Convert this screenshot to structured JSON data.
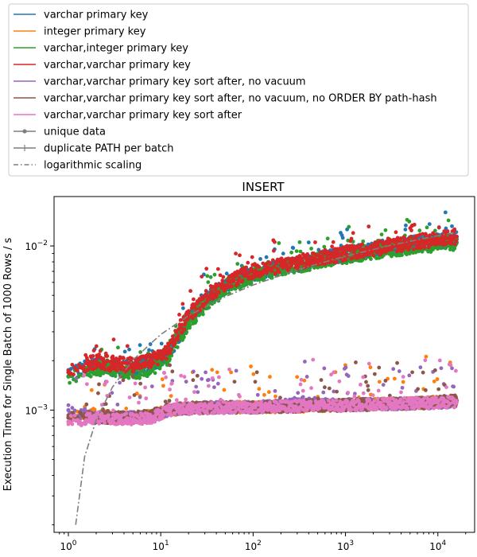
{
  "chart_data": {
    "type": "scatter",
    "title": "INSERT",
    "xlabel": "",
    "ylabel": "Execution Time for Single Batch of 1000 Rows / s",
    "xscale": "log",
    "yscale": "log",
    "xlim": [
      0.7,
      25000
    ],
    "ylim": [
      0.00018,
      0.02
    ],
    "grid": false,
    "legend_position": "above the plot",
    "x_ticks": [
      {
        "base": "10",
        "exp": "0",
        "value": 1
      },
      {
        "base": "10",
        "exp": "1",
        "value": 10
      },
      {
        "base": "10",
        "exp": "2",
        "value": 100
      },
      {
        "base": "10",
        "exp": "3",
        "value": 1000
      },
      {
        "base": "10",
        "exp": "4",
        "value": 10000
      }
    ],
    "y_ticks": [
      {
        "base": "10",
        "exp": "−3",
        "value": 0.001
      },
      {
        "base": "10",
        "exp": "−2",
        "value": 0.01
      }
    ],
    "legend": [
      {
        "label": "varchar primary key",
        "color": "#1f77b4",
        "style": "line"
      },
      {
        "label": "integer primary key",
        "color": "#ff7f0e",
        "style": "line"
      },
      {
        "label": "varchar,integer primary key",
        "color": "#2ca02c",
        "style": "line"
      },
      {
        "label": "varchar,varchar primary key",
        "color": "#d62728",
        "style": "line"
      },
      {
        "label": "varchar,varchar primary key sort after, no vacuum",
        "color": "#9467bd",
        "style": "line"
      },
      {
        "label": "varchar,varchar primary key sort after, no vacuum, no ORDER BY path-hash",
        "color": "#8c564b",
        "style": "line"
      },
      {
        "label": "varchar,varchar primary key sort after",
        "color": "#e377c2",
        "style": "line"
      },
      {
        "label": "unique data",
        "color": "#7f7f7f",
        "style": "dot-line"
      },
      {
        "label": "duplicate PATH per batch",
        "color": "#7f7f7f",
        "style": "plus-line"
      },
      {
        "label": "logarithmic scaling",
        "color": "#7f7f7f",
        "style": "dashdot"
      }
    ],
    "series": [
      {
        "name": "varchar primary key",
        "color": "#1f77b4",
        "group": "high",
        "x": [
          1,
          2,
          3,
          5,
          8,
          12,
          20,
          35,
          60,
          100,
          200,
          400,
          800,
          1500,
          3000,
          6000,
          10000,
          16000
        ],
        "y": [
          0.0017,
          0.0019,
          0.0018,
          0.0018,
          0.0019,
          0.0022,
          0.0036,
          0.005,
          0.006,
          0.0068,
          0.0074,
          0.008,
          0.0087,
          0.0093,
          0.0099,
          0.0104,
          0.0107,
          0.011
        ]
      },
      {
        "name": "integer primary key",
        "color": "#ff7f0e",
        "group": "low",
        "x": [
          1,
          2,
          3,
          5,
          8,
          12,
          20,
          35,
          60,
          100,
          200,
          400,
          800,
          1500,
          3000,
          6000,
          10000,
          16000
        ],
        "y": [
          0.0009,
          0.00095,
          0.0009,
          0.0009,
          0.00092,
          0.001,
          0.00103,
          0.00104,
          0.00104,
          0.00104,
          0.00105,
          0.00106,
          0.00107,
          0.00108,
          0.00109,
          0.0011,
          0.00112,
          0.00114
        ]
      },
      {
        "name": "varchar,integer primary key",
        "color": "#2ca02c",
        "group": "high",
        "x": [
          1,
          2,
          3,
          5,
          8,
          12,
          20,
          35,
          60,
          100,
          200,
          400,
          800,
          1500,
          3000,
          6000,
          10000,
          16000
        ],
        "y": [
          0.0016,
          0.0018,
          0.0018,
          0.0017,
          0.0018,
          0.0021,
          0.0034,
          0.0048,
          0.0058,
          0.0066,
          0.0073,
          0.0078,
          0.0085,
          0.009,
          0.0095,
          0.01,
          0.0103,
          0.0105
        ]
      },
      {
        "name": "varchar,varchar primary key",
        "color": "#d62728",
        "group": "high",
        "x": [
          1,
          2,
          3,
          5,
          8,
          12,
          20,
          35,
          60,
          100,
          200,
          400,
          800,
          1500,
          3000,
          6000,
          10000,
          16000
        ],
        "y": [
          0.0017,
          0.002,
          0.0019,
          0.0019,
          0.002,
          0.0023,
          0.0038,
          0.0052,
          0.0062,
          0.007,
          0.0076,
          0.0082,
          0.0088,
          0.0094,
          0.01,
          0.0106,
          0.011,
          0.0114
        ]
      },
      {
        "name": "varchar,varchar primary key sort after, no vacuum",
        "color": "#9467bd",
        "group": "low",
        "x": [
          1,
          2,
          3,
          5,
          8,
          12,
          20,
          35,
          60,
          100,
          200,
          400,
          800,
          1500,
          3000,
          6000,
          10000,
          16000
        ],
        "y": [
          0.001,
          0.0009,
          0.0009,
          0.0009,
          0.00092,
          0.001,
          0.00103,
          0.00104,
          0.00104,
          0.00104,
          0.00106,
          0.0011,
          0.00108,
          0.00108,
          0.00109,
          0.0011,
          0.00111,
          0.00113
        ]
      },
      {
        "name": "varchar,varchar primary key sort after, no vacuum, no ORDER BY path-hash",
        "color": "#8c564b",
        "group": "low",
        "x": [
          1,
          2,
          3,
          5,
          8,
          12,
          20,
          35,
          60,
          100,
          200,
          400,
          800,
          1500,
          3000,
          6000,
          10000,
          16000
        ],
        "y": [
          0.0009,
          0.0009,
          0.0009,
          0.0009,
          0.00093,
          0.001,
          0.00103,
          0.00104,
          0.00104,
          0.00104,
          0.00105,
          0.00106,
          0.00107,
          0.00108,
          0.00109,
          0.0011,
          0.00112,
          0.00114
        ]
      },
      {
        "name": "varchar,varchar primary key sort after",
        "color": "#e377c2",
        "group": "low",
        "x": [
          1,
          2,
          3,
          5,
          8,
          12,
          20,
          35,
          60,
          100,
          200,
          400,
          800,
          1500,
          3000,
          6000,
          10000,
          16000
        ],
        "y": [
          0.00085,
          0.0009,
          0.00088,
          0.00088,
          0.0009,
          0.001,
          0.00102,
          0.00103,
          0.00104,
          0.00104,
          0.00105,
          0.00106,
          0.00107,
          0.00108,
          0.00109,
          0.0011,
          0.00111,
          0.00112
        ]
      },
      {
        "name": "logarithmic scaling",
        "color": "#7f7f7f",
        "style": "dashdot",
        "group": "line",
        "x": [
          1.2,
          1.5,
          2,
          3,
          5,
          10,
          20,
          50,
          100,
          300,
          1000,
          3000,
          10000,
          16000
        ],
        "y": [
          0.0002,
          0.00052,
          0.00087,
          0.00138,
          0.00202,
          0.00289,
          0.00376,
          0.00491,
          0.00578,
          0.00716,
          0.00867,
          0.01005,
          0.01156,
          0.01215
        ]
      }
    ]
  }
}
